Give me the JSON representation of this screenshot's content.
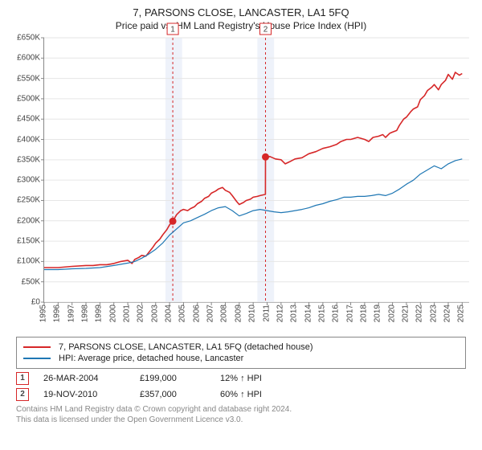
{
  "title": "7, PARSONS CLOSE, LANCASTER, LA1 5FQ",
  "subtitle": "Price paid vs. HM Land Registry's House Price Index (HPI)",
  "chart": {
    "type": "line",
    "xlim": [
      1995,
      2025.5
    ],
    "ylim": [
      0,
      650000
    ],
    "ytick_step": 50000,
    "ytick_prefix": "£",
    "ytick_suffix": "K",
    "ytick_divisor": 1000,
    "background_color": "#ffffff",
    "grid_color": "#e6e6e6",
    "axis_color": "#888888",
    "label_color": "#444444",
    "label_fontsize": 10,
    "tick_line_width": 1,
    "xlabels": [
      1995,
      1996,
      1997,
      1998,
      1999,
      2000,
      2001,
      2002,
      2003,
      2004,
      2005,
      2006,
      2007,
      2008,
      2009,
      2010,
      2011,
      2012,
      2013,
      2014,
      2015,
      2016,
      2017,
      2018,
      2019,
      2020,
      2021,
      2022,
      2023,
      2024,
      2025
    ],
    "series": [
      {
        "name": "price_paid",
        "color": "#d62728",
        "line_width": 1.6,
        "data": [
          [
            1995.0,
            85000
          ],
          [
            1996.0,
            85000
          ],
          [
            1997.0,
            88000
          ],
          [
            1998.0,
            90000
          ],
          [
            1998.5,
            90000
          ],
          [
            1999.0,
            92000
          ],
          [
            1999.5,
            92000
          ],
          [
            2000.0,
            95000
          ],
          [
            2000.5,
            100000
          ],
          [
            2001.0,
            103000
          ],
          [
            2001.3,
            95000
          ],
          [
            2001.5,
            105000
          ],
          [
            2001.8,
            110000
          ],
          [
            2002.0,
            115000
          ],
          [
            2002.3,
            113000
          ],
          [
            2002.5,
            122000
          ],
          [
            2002.8,
            135000
          ],
          [
            2003.0,
            145000
          ],
          [
            2003.3,
            155000
          ],
          [
            2003.5,
            165000
          ],
          [
            2003.8,
            178000
          ],
          [
            2004.0,
            190000
          ],
          [
            2004.23,
            199000
          ],
          [
            2004.5,
            215000
          ],
          [
            2004.8,
            225000
          ],
          [
            2005.0,
            228000
          ],
          [
            2005.3,
            225000
          ],
          [
            2005.5,
            230000
          ],
          [
            2005.8,
            235000
          ],
          [
            2006.0,
            242000
          ],
          [
            2006.3,
            248000
          ],
          [
            2006.5,
            255000
          ],
          [
            2006.8,
            260000
          ],
          [
            2007.0,
            268000
          ],
          [
            2007.3,
            273000
          ],
          [
            2007.5,
            278000
          ],
          [
            2007.8,
            282000
          ],
          [
            2008.0,
            275000
          ],
          [
            2008.3,
            270000
          ],
          [
            2008.5,
            262000
          ],
          [
            2008.8,
            248000
          ],
          [
            2009.0,
            240000
          ],
          [
            2009.3,
            245000
          ],
          [
            2009.5,
            250000
          ],
          [
            2009.8,
            253000
          ],
          [
            2010.0,
            258000
          ],
          [
            2010.3,
            260000
          ],
          [
            2010.5,
            262000
          ],
          [
            2010.88,
            265000
          ],
          [
            2010.885,
            357000
          ],
          [
            2011.2,
            358000
          ],
          [
            2011.6,
            352000
          ],
          [
            2012.0,
            350000
          ],
          [
            2012.3,
            340000
          ],
          [
            2012.6,
            345000
          ],
          [
            2013.0,
            352000
          ],
          [
            2013.5,
            355000
          ],
          [
            2014.0,
            365000
          ],
          [
            2014.5,
            370000
          ],
          [
            2015.0,
            378000
          ],
          [
            2015.5,
            382000
          ],
          [
            2016.0,
            388000
          ],
          [
            2016.3,
            395000
          ],
          [
            2016.7,
            400000
          ],
          [
            2017.0,
            400000
          ],
          [
            2017.5,
            405000
          ],
          [
            2018.0,
            400000
          ],
          [
            2018.3,
            395000
          ],
          [
            2018.6,
            405000
          ],
          [
            2019.0,
            408000
          ],
          [
            2019.3,
            412000
          ],
          [
            2019.5,
            405000
          ],
          [
            2019.8,
            415000
          ],
          [
            2020.0,
            418000
          ],
          [
            2020.3,
            422000
          ],
          [
            2020.5,
            435000
          ],
          [
            2020.8,
            450000
          ],
          [
            2021.0,
            455000
          ],
          [
            2021.3,
            468000
          ],
          [
            2021.5,
            475000
          ],
          [
            2021.8,
            480000
          ],
          [
            2022.0,
            498000
          ],
          [
            2022.3,
            508000
          ],
          [
            2022.5,
            520000
          ],
          [
            2022.8,
            528000
          ],
          [
            2023.0,
            535000
          ],
          [
            2023.3,
            522000
          ],
          [
            2023.5,
            535000
          ],
          [
            2023.8,
            545000
          ],
          [
            2024.0,
            560000
          ],
          [
            2024.3,
            548000
          ],
          [
            2024.5,
            565000
          ],
          [
            2024.8,
            558000
          ],
          [
            2025.0,
            562000
          ]
        ]
      },
      {
        "name": "hpi",
        "color": "#1f77b4",
        "line_width": 1.2,
        "data": [
          [
            1995.0,
            80000
          ],
          [
            1996.0,
            80000
          ],
          [
            1997.0,
            82000
          ],
          [
            1998.0,
            83000
          ],
          [
            1999.0,
            85000
          ],
          [
            2000.0,
            90000
          ],
          [
            2000.5,
            93000
          ],
          [
            2001.0,
            96000
          ],
          [
            2001.5,
            100000
          ],
          [
            2002.0,
            108000
          ],
          [
            2002.5,
            118000
          ],
          [
            2003.0,
            130000
          ],
          [
            2003.5,
            145000
          ],
          [
            2004.0,
            165000
          ],
          [
            2004.5,
            180000
          ],
          [
            2005.0,
            195000
          ],
          [
            2005.5,
            200000
          ],
          [
            2006.0,
            208000
          ],
          [
            2006.5,
            216000
          ],
          [
            2007.0,
            225000
          ],
          [
            2007.5,
            232000
          ],
          [
            2008.0,
            235000
          ],
          [
            2008.5,
            225000
          ],
          [
            2009.0,
            212000
          ],
          [
            2009.5,
            218000
          ],
          [
            2010.0,
            225000
          ],
          [
            2010.5,
            228000
          ],
          [
            2011.0,
            225000
          ],
          [
            2011.5,
            222000
          ],
          [
            2012.0,
            220000
          ],
          [
            2012.5,
            222000
          ],
          [
            2013.0,
            225000
          ],
          [
            2013.5,
            228000
          ],
          [
            2014.0,
            232000
          ],
          [
            2014.5,
            238000
          ],
          [
            2015.0,
            242000
          ],
          [
            2015.5,
            248000
          ],
          [
            2016.0,
            252000
          ],
          [
            2016.5,
            258000
          ],
          [
            2017.0,
            258000
          ],
          [
            2017.5,
            260000
          ],
          [
            2018.0,
            260000
          ],
          [
            2018.5,
            262000
          ],
          [
            2019.0,
            265000
          ],
          [
            2019.5,
            262000
          ],
          [
            2020.0,
            268000
          ],
          [
            2020.5,
            278000
          ],
          [
            2021.0,
            290000
          ],
          [
            2021.5,
            300000
          ],
          [
            2022.0,
            315000
          ],
          [
            2022.5,
            325000
          ],
          [
            2023.0,
            335000
          ],
          [
            2023.5,
            328000
          ],
          [
            2024.0,
            340000
          ],
          [
            2024.5,
            348000
          ],
          [
            2025.0,
            352000
          ]
        ]
      }
    ],
    "bands": [
      {
        "x_from": 2003.7,
        "x_to": 2004.9,
        "color": "#eef2fa"
      },
      {
        "x_from": 2010.3,
        "x_to": 2011.5,
        "color": "#eef2fa"
      }
    ],
    "vlines": [
      {
        "x": 2004.23,
        "color": "#d62728",
        "dash": "3,3",
        "label": "1"
      },
      {
        "x": 2010.885,
        "color": "#d62728",
        "dash": "3,3",
        "label": "2"
      }
    ],
    "markers": [
      {
        "x": 2004.23,
        "y": 199000,
        "color": "#d62728",
        "radius": 4.5
      },
      {
        "x": 2010.885,
        "y": 357000,
        "color": "#d62728",
        "radius": 4.5
      }
    ],
    "marker_label_box": {
      "border_color": "#d62728",
      "text_color": "#444444",
      "fontsize": 10,
      "box_size": 14
    }
  },
  "legend": {
    "items": [
      {
        "color": "#d62728",
        "label": "7, PARSONS CLOSE, LANCASTER, LA1 5FQ (detached house)"
      },
      {
        "color": "#1f77b4",
        "label": "HPI: Average price, detached house, Lancaster"
      }
    ]
  },
  "transactions": [
    {
      "idx": "1",
      "date": "26-MAR-2004",
      "price": "£199,000",
      "vs_hpi": "12% ↑ HPI",
      "marker_color": "#d62728"
    },
    {
      "idx": "2",
      "date": "19-NOV-2010",
      "price": "£357,000",
      "vs_hpi": "60% ↑ HPI",
      "marker_color": "#d62728"
    }
  ],
  "attribution": {
    "line1": "Contains HM Land Registry data © Crown copyright and database right 2024.",
    "line2": "This data is licensed under the Open Government Licence v3.0."
  }
}
